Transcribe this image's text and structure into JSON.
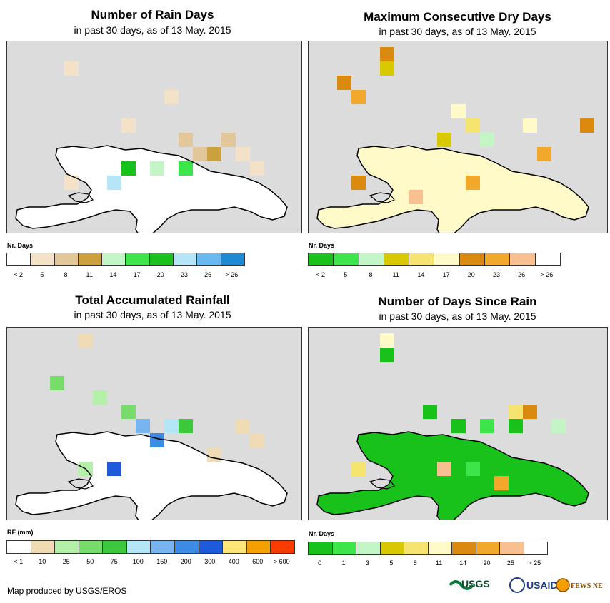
{
  "panels": [
    {
      "title": "Number of Rain Days",
      "subtitle": "in past 30 days, as of 13 May. 2015",
      "legend_title": "Nr. Days",
      "legend_colors": [
        "#ffffff",
        "#f4e2c8",
        "#e2c79a",
        "#cca03c",
        "#c3f5c6",
        "#3ee54a",
        "#18c21a",
        "#b4e6f8",
        "#6ab8f0",
        "#1e8ad4"
      ],
      "legend_labels": [
        "< 2",
        "5",
        "8",
        "11",
        "14",
        "17",
        "20",
        "23",
        "26",
        "> 26"
      ],
      "map_style": "rain"
    },
    {
      "title": "Maximum Consecutive Dry Days",
      "subtitle": "in past 30 days, as of 13 May. 2015",
      "legend_title": "Nr. Days",
      "legend_colors": [
        "#18c21a",
        "#3ee54a",
        "#c3f5c6",
        "#d8c800",
        "#f5e470",
        "#fffac8",
        "#db8a10",
        "#f2a82a",
        "#f8c090",
        "#ffffff"
      ],
      "legend_labels": [
        "< 2",
        "5",
        "8",
        "11",
        "14",
        "17",
        "20",
        "23",
        "26",
        "> 26"
      ],
      "map_style": "dry"
    },
    {
      "title": "Total Accumulated Rainfall",
      "subtitle": "in past 30 days, as of 13 May. 2015",
      "legend_title": "RF (mm)",
      "legend_colors": [
        "#ffffff",
        "#f0dcb4",
        "#b4f0a8",
        "#78dc6c",
        "#3cc83c",
        "#b4e6f8",
        "#78b4f0",
        "#3c8ce6",
        "#1e5adc",
        "#ffe678",
        "#f5a000",
        "#fa3c00"
      ],
      "legend_labels": [
        "< 1",
        "10",
        "25",
        "50",
        "75",
        "100",
        "150",
        "200",
        "300",
        "400",
        "600",
        "> 600"
      ],
      "map_style": "total"
    },
    {
      "title": "Number of Days Since Rain",
      "subtitle": "in past 30 days, as of 13 May. 2015",
      "legend_title": "Nr. Days",
      "legend_colors": [
        "#18c21a",
        "#3ee54a",
        "#c3f5c6",
        "#d8c800",
        "#f5e470",
        "#fffac8",
        "#db8a10",
        "#f2a82a",
        "#f8c090",
        "#ffffff"
      ],
      "legend_labels": [
        "0",
        "1",
        "3",
        "5",
        "8",
        "11",
        "14",
        "20",
        "25",
        "> 25"
      ],
      "map_style": "since"
    }
  ],
  "footer": "Map produced by USGS/EROS",
  "logos": [
    "USGS",
    "USAID",
    "FEWS NET"
  ]
}
